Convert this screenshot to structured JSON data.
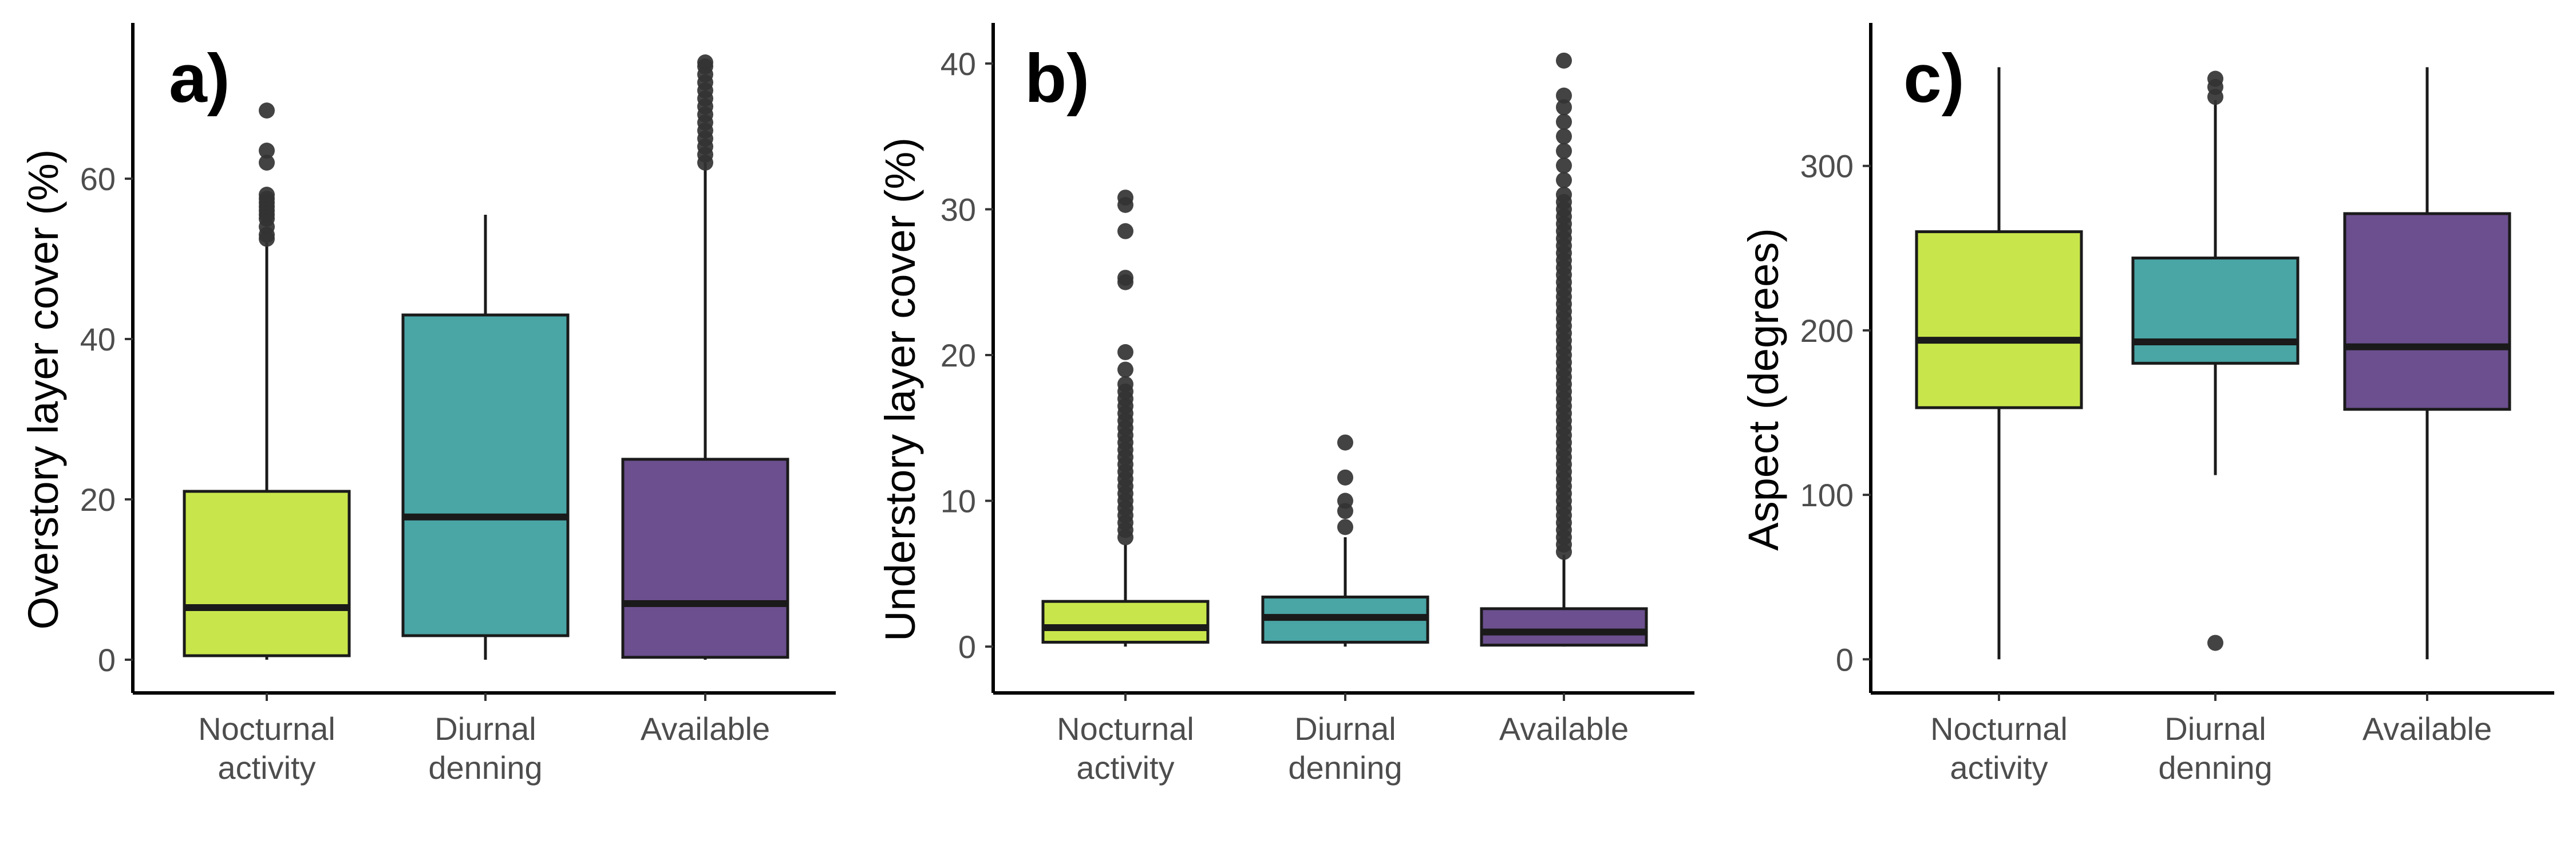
{
  "figure": {
    "background": "#ffffff",
    "fill_colors": [
      "#c8e64b",
      "#4aa5a5",
      "#6b4f8e"
    ]
  },
  "chart_data": [
    {
      "type": "boxplot",
      "panel_label": "a)",
      "ylabel": "Overstory layer cover (%)",
      "ylim": [
        -2,
        78
      ],
      "yticks": [
        0,
        20,
        40,
        60
      ],
      "categories": [
        "Nocturnal\nactivity",
        "Diurnal\ndenning",
        "Available"
      ],
      "boxes": [
        {
          "q1": 0.5,
          "median": 6.5,
          "q3": 21,
          "whisker_low": 0,
          "whisker_high": 52,
          "outliers": [
            52.5,
            53,
            54,
            55,
            55.5,
            56,
            56.5,
            57,
            57.5,
            58,
            62,
            63.5,
            68.5
          ]
        },
        {
          "q1": 3,
          "median": 17.8,
          "q3": 43,
          "whisker_low": 0,
          "whisker_high": 55.5,
          "outliers": []
        },
        {
          "q1": 0.3,
          "median": 7,
          "q3": 25,
          "whisker_low": 0,
          "whisker_high": 62,
          "outliers": [
            62,
            63,
            64,
            65,
            66,
            67,
            68,
            69,
            70,
            71,
            72,
            73,
            74,
            74.5
          ]
        }
      ]
    },
    {
      "type": "boxplot",
      "panel_label": "b)",
      "ylabel": "Understory layer cover (%)",
      "ylim": [
        -2,
        42
      ],
      "yticks": [
        0,
        10,
        20,
        30,
        40
      ],
      "categories": [
        "Nocturnal\nactivity",
        "Diurnal\ndenning",
        "Available"
      ],
      "boxes": [
        {
          "q1": 0.3,
          "median": 1.3,
          "q3": 3.1,
          "whisker_low": 0,
          "whisker_high": 7,
          "outliers": [
            7.5,
            8,
            8.5,
            9,
            9.5,
            10,
            10.5,
            11,
            11.5,
            12,
            12.5,
            13,
            13.5,
            14,
            14.5,
            15,
            15.5,
            16,
            16.5,
            17,
            17.5,
            18,
            19,
            20.2,
            25,
            25.3,
            28.5,
            30.3,
            30.8
          ]
        },
        {
          "q1": 0.3,
          "median": 2,
          "q3": 3.4,
          "whisker_low": 0,
          "whisker_high": 7.5,
          "outliers": [
            8.2,
            9.3,
            10,
            11.6,
            14
          ]
        },
        {
          "q1": 0.1,
          "median": 1,
          "q3": 2.6,
          "whisker_low": 0,
          "whisker_high": 6.3,
          "outliers": [
            6.5,
            7,
            7.5,
            8,
            8.5,
            9,
            9.5,
            10,
            10.5,
            11,
            11.5,
            12,
            12.5,
            13,
            13.5,
            14,
            14.5,
            15,
            15.5,
            16,
            16.5,
            17,
            17.5,
            18,
            18.5,
            19,
            19.5,
            20,
            20.5,
            21,
            21.5,
            22,
            22.5,
            23,
            23.5,
            24,
            24.5,
            25,
            25.5,
            26,
            26.5,
            27,
            27.5,
            28,
            28.5,
            29,
            29.5,
            30,
            30.5,
            31,
            32,
            33,
            34,
            35,
            36,
            37,
            37.8,
            40.2
          ]
        }
      ]
    },
    {
      "type": "boxplot",
      "panel_label": "c)",
      "ylabel": "Aspect (degrees)",
      "ylim": [
        -10,
        380
      ],
      "yticks": [
        0,
        100,
        200,
        300
      ],
      "categories": [
        "Nocturnal\nactivity",
        "Diurnal\ndenning",
        "Available"
      ],
      "boxes": [
        {
          "q1": 153,
          "median": 194,
          "q3": 260,
          "whisker_low": 0,
          "whisker_high": 360,
          "outliers": []
        },
        {
          "q1": 180,
          "median": 193,
          "q3": 244,
          "whisker_low": 112,
          "whisker_high": 340,
          "outliers": [
            10,
            342,
            348,
            353
          ]
        },
        {
          "q1": 152,
          "median": 190,
          "q3": 271,
          "whisker_low": 0,
          "whisker_high": 360,
          "outliers": []
        }
      ]
    }
  ]
}
